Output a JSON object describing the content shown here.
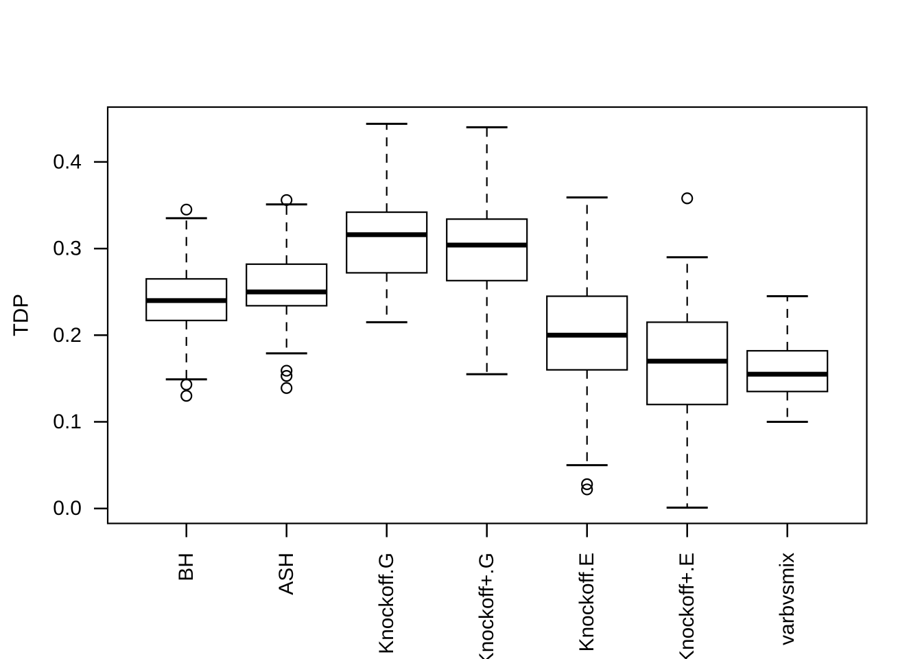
{
  "chart_data": {
    "type": "boxplot",
    "title": "",
    "xlabel": "",
    "ylabel": "TDP",
    "legend": "none",
    "grid": false,
    "background": "#ffffff",
    "stroke_color": "#000000",
    "ylim": [
      -0.017,
      0.463
    ],
    "ytick_labels": [
      "0.0",
      "0.1",
      "0.2",
      "0.3",
      "0.4"
    ],
    "ytick_values": [
      0.0,
      0.1,
      0.2,
      0.3,
      0.4
    ],
    "categories": [
      "BH",
      "ASH",
      "Knockoff.G",
      "Knockoff+.G",
      "Knockoff.E",
      "Knockoff+.E",
      "varbvsmix"
    ],
    "series": [
      {
        "name": "BH",
        "whisker_low": 0.149,
        "q1": 0.217,
        "median": 0.24,
        "q3": 0.265,
        "whisker_high": 0.335,
        "outliers": [
          0.345,
          0.143,
          0.13
        ]
      },
      {
        "name": "ASH",
        "whisker_low": 0.179,
        "q1": 0.234,
        "median": 0.25,
        "q3": 0.282,
        "whisker_high": 0.351,
        "outliers": [
          0.356,
          0.159,
          0.153,
          0.139
        ]
      },
      {
        "name": "Knockoff.G",
        "whisker_low": 0.215,
        "q1": 0.272,
        "median": 0.316,
        "q3": 0.342,
        "whisker_high": 0.444,
        "outliers": []
      },
      {
        "name": "Knockoff+.G",
        "whisker_low": 0.155,
        "q1": 0.263,
        "median": 0.304,
        "q3": 0.334,
        "whisker_high": 0.44,
        "outliers": []
      },
      {
        "name": "Knockoff.E",
        "whisker_low": 0.05,
        "q1": 0.16,
        "median": 0.2,
        "q3": 0.245,
        "whisker_high": 0.359,
        "outliers": [
          0.028,
          0.022
        ]
      },
      {
        "name": "Knockoff+.E",
        "whisker_low": 0.001,
        "q1": 0.12,
        "median": 0.17,
        "q3": 0.215,
        "whisker_high": 0.29,
        "outliers": [
          0.358
        ]
      },
      {
        "name": "varbvsmix",
        "whisker_low": 0.1,
        "q1": 0.135,
        "median": 0.155,
        "q3": 0.182,
        "whisker_high": 0.245,
        "outliers": []
      }
    ]
  }
}
